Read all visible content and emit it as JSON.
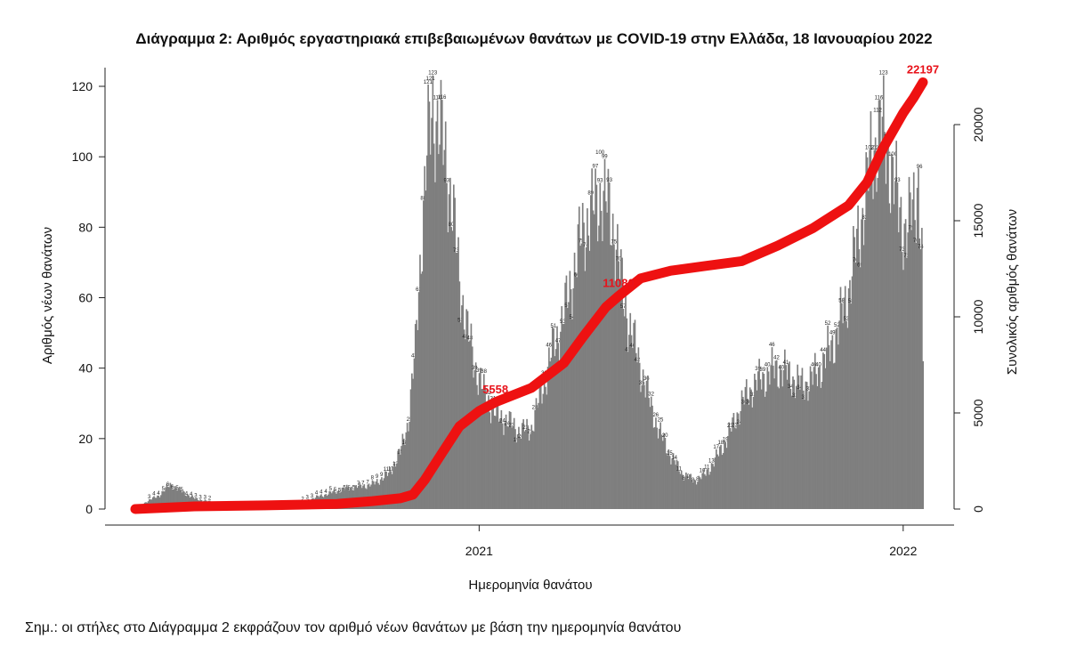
{
  "title": "Διάγραμμα 2: Αριθμός εργαστηριακά επιβεβαιωμένων θανάτων με COVID-19 στην Ελλάδα, 18 Ιανουαρίου 2022",
  "note": "Σημ.: οι στήλες στο Διάγραμμα 2 εκφράζουν τον αριθμό νέων θανάτων με βάση την ημερομηνία θανάτου",
  "colors": {
    "bars": "#7f7f7f",
    "cumulative_line": "#ee1111",
    "cumulative_labels": "#e8121a"
  },
  "chart_data": {
    "type": "bar",
    "title": "Διάγραμμα 2: Αριθμός εργαστηριακά επιβεβαιωμένων θανάτων με COVID-19 στην Ελλάδα, 18 Ιανουαρίου 2022",
    "xlabel": "Ημερομηνία θανάτου",
    "ylabel": "Αριθμός νέων θανάτων",
    "y2label": "Συνολικός αριθμός θανάτων",
    "xlim": [
      "2020-03-11",
      "2022-01-18"
    ],
    "ylim": [
      0,
      125
    ],
    "y2lim": [
      0,
      23000
    ],
    "x_tick_labels": [
      {
        "date": "2021-01-01",
        "label": "2021"
      },
      {
        "date": "2022-01-01",
        "label": "2022"
      }
    ],
    "y_ticks": [
      0,
      20,
      40,
      60,
      80,
      100,
      120
    ],
    "y2_ticks": [
      0,
      5000,
      10000,
      15000,
      20000
    ],
    "grid": false,
    "bar_series": {
      "name": "Αριθμός νέων θανάτων",
      "anchors": [
        [
          "2020-03-11",
          0
        ],
        [
          "2020-03-20",
          2
        ],
        [
          "2020-04-01",
          4
        ],
        [
          "2020-04-10",
          7
        ],
        [
          "2020-04-20",
          5
        ],
        [
          "2020-05-01",
          3
        ],
        [
          "2020-05-15",
          2
        ],
        [
          "2020-06-01",
          1
        ],
        [
          "2020-06-15",
          1
        ],
        [
          "2020-07-01",
          1
        ],
        [
          "2020-07-20",
          1
        ],
        [
          "2020-08-01",
          2
        ],
        [
          "2020-08-20",
          4
        ],
        [
          "2020-09-10",
          6
        ],
        [
          "2020-10-01",
          7
        ],
        [
          "2020-10-15",
          10
        ],
        [
          "2020-10-25",
          16
        ],
        [
          "2020-11-01",
          25
        ],
        [
          "2020-11-07",
          45
        ],
        [
          "2020-11-12",
          75
        ],
        [
          "2020-11-17",
          100
        ],
        [
          "2020-11-22",
          115
        ],
        [
          "2020-11-27",
          108
        ],
        [
          "2020-12-03",
          100
        ],
        [
          "2020-12-09",
          85
        ],
        [
          "2020-12-15",
          65
        ],
        [
          "2020-12-22",
          50
        ],
        [
          "2020-12-29",
          40
        ],
        [
          "2021-01-05",
          33
        ],
        [
          "2021-01-15",
          27
        ],
        [
          "2021-01-25",
          25
        ],
        [
          "2021-02-05",
          22
        ],
        [
          "2021-02-15",
          23
        ],
        [
          "2021-02-25",
          35
        ],
        [
          "2021-03-05",
          45
        ],
        [
          "2021-03-15",
          55
        ],
        [
          "2021-03-25",
          70
        ],
        [
          "2021-04-01",
          80
        ],
        [
          "2021-04-10",
          85
        ],
        [
          "2021-04-16",
          90
        ],
        [
          "2021-04-22",
          85
        ],
        [
          "2021-04-28",
          78
        ],
        [
          "2021-05-05",
          60
        ],
        [
          "2021-05-12",
          50
        ],
        [
          "2021-05-20",
          40
        ],
        [
          "2021-05-28",
          30
        ],
        [
          "2021-06-05",
          22
        ],
        [
          "2021-06-15",
          15
        ],
        [
          "2021-06-25",
          10
        ],
        [
          "2021-07-05",
          8
        ],
        [
          "2021-07-15",
          10
        ],
        [
          "2021-07-25",
          15
        ],
        [
          "2021-08-05",
          22
        ],
        [
          "2021-08-15",
          30
        ],
        [
          "2021-08-25",
          35
        ],
        [
          "2021-09-05",
          38
        ],
        [
          "2021-09-15",
          40
        ],
        [
          "2021-09-25",
          38
        ],
        [
          "2021-10-05",
          35
        ],
        [
          "2021-10-15",
          37
        ],
        [
          "2021-10-25",
          42
        ],
        [
          "2021-11-05",
          50
        ],
        [
          "2021-11-15",
          62
        ],
        [
          "2021-11-22",
          75
        ],
        [
          "2021-11-30",
          90
        ],
        [
          "2021-12-05",
          100
        ],
        [
          "2021-12-12",
          108
        ],
        [
          "2021-12-20",
          100
        ],
        [
          "2021-12-28",
          85
        ],
        [
          "2022-01-04",
          78
        ],
        [
          "2022-01-09",
          85
        ],
        [
          "2022-01-14",
          94
        ],
        [
          "2022-01-17",
          70
        ],
        [
          "2022-01-18",
          38
        ]
      ]
    },
    "line_series": {
      "name": "Συνολικός αριθμός θανάτων",
      "points": [
        [
          "2020-03-11",
          0
        ],
        [
          "2020-05-01",
          140
        ],
        [
          "2020-07-01",
          190
        ],
        [
          "2020-09-01",
          270
        ],
        [
          "2020-10-01",
          410
        ],
        [
          "2020-10-25",
          560
        ],
        [
          "2020-11-05",
          750
        ],
        [
          "2020-11-15",
          1500
        ],
        [
          "2020-12-01",
          3000
        ],
        [
          "2020-12-15",
          4300
        ],
        [
          "2021-01-01",
          5100
        ],
        [
          "2021-01-15",
          5558
        ],
        [
          "2021-02-15",
          6300
        ],
        [
          "2021-03-15",
          7600
        ],
        [
          "2021-04-01",
          9000
        ],
        [
          "2021-04-20",
          10500
        ],
        [
          "2021-05-01",
          11080
        ],
        [
          "2021-05-20",
          12000
        ],
        [
          "2021-06-15",
          12400
        ],
        [
          "2021-07-15",
          12650
        ],
        [
          "2021-08-15",
          12900
        ],
        [
          "2021-09-15",
          13700
        ],
        [
          "2021-10-15",
          14600
        ],
        [
          "2021-11-15",
          15800
        ],
        [
          "2021-12-01",
          17000
        ],
        [
          "2021-12-15",
          18800
        ],
        [
          "2022-01-01",
          20600
        ],
        [
          "2022-01-10",
          21400
        ],
        [
          "2022-01-18",
          22197
        ]
      ]
    },
    "annotations": [
      {
        "label": "5558",
        "date": "2021-01-15",
        "value": 5558
      },
      {
        "label": "11080",
        "date": "2021-05-01",
        "value": 11080
      },
      {
        "label": "22197",
        "date": "2022-01-18",
        "value": 22197
      }
    ],
    "peak_labels": [
      {
        "label": "121",
        "date": "2020-11-20",
        "value": 121
      },
      {
        "label": "100",
        "date": "2021-04-15",
        "value": 100
      },
      {
        "label": "112",
        "date": "2021-12-10",
        "value": 112
      },
      {
        "label": "96",
        "date": "2022-01-15",
        "value": 96
      }
    ]
  }
}
